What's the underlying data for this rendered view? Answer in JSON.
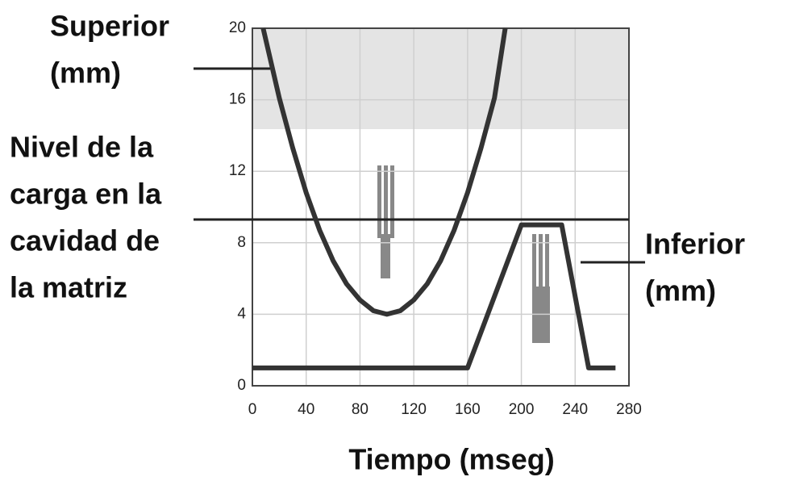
{
  "chart_data": {
    "type": "line",
    "x_label": "Tiempo (mseg)",
    "xlim": [
      0,
      280
    ],
    "xticks": [
      0,
      40,
      80,
      120,
      160,
      200,
      240,
      280
    ],
    "ylim": [
      0,
      20
    ],
    "yticks": [
      0,
      4,
      8,
      12,
      16,
      20
    ],
    "grid": true,
    "series": [
      {
        "name_lines": [
          "Superior",
          "(mm)"
        ],
        "color": "#333333",
        "x": [
          8,
          20,
          30,
          40,
          50,
          60,
          70,
          80,
          90,
          100,
          110,
          120,
          130,
          140,
          150,
          160,
          170,
          180,
          188
        ],
        "values": [
          20,
          16.1,
          13.3,
          10.8,
          8.7,
          7.0,
          5.7,
          4.8,
          4.2,
          4,
          4.2,
          4.8,
          5.7,
          7.0,
          8.7,
          10.8,
          13.3,
          16.1,
          20
        ]
      },
      {
        "name_lines": [
          "Inferior",
          "(mm)"
        ],
        "color": "#333333",
        "x": [
          0,
          160,
          200,
          230,
          250,
          270
        ],
        "values": [
          1,
          1,
          9,
          9,
          1,
          1
        ]
      }
    ],
    "level_line": {
      "value": 9.3,
      "label_lines": [
        "Nivel de la",
        "carga en la",
        "cavidad de",
        "la matriz"
      ]
    }
  }
}
